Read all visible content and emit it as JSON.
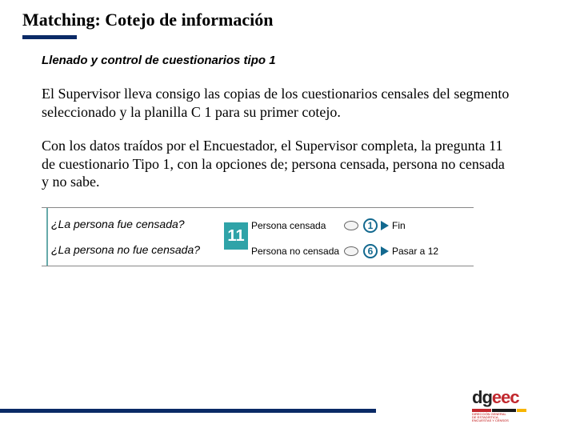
{
  "colors": {
    "accent_navy": "#0a2a66",
    "teal": "#2fa3a8",
    "circle_blue": "#13698f",
    "logo_red": "#c1272d",
    "text": "#000000",
    "bg": "#ffffff"
  },
  "title": "Matching: Cotejo de información",
  "subtitle": "Llenado y control de cuestionarios tipo 1",
  "paragraphs": [
    "El Supervisor lleva consigo las copias de los cuestionarios censales del segmento seleccionado y la planilla C 1 para su primer cotejo.",
    "Con los datos traídos por el Encuestador, el Supervisor completa, la pregunta 11 de cuestionario Tipo 1, con la opciones de; persona censada, persona no censada y no sabe."
  ],
  "figure": {
    "question_number": "11",
    "q1": "¿La persona fue censada?",
    "q2": "¿La persona no fue censada?",
    "options": [
      {
        "label": "Persona censada",
        "code": "1",
        "goto": "Fin"
      },
      {
        "label": "Persona no censada",
        "code": "6",
        "goto": "Pasar a 12"
      }
    ]
  },
  "logo": {
    "text_dark": "dg",
    "text_red": "eec",
    "bars": [
      {
        "color": "#c1272d",
        "width": 24
      },
      {
        "color": "#1a1a1a",
        "width": 30
      },
      {
        "color": "#f7b500",
        "width": 12
      }
    ],
    "subtext": "DIRECCIÓN GENERAL\nDE ESTADÍSTICA,\nENCUESTAS Y CENSOS"
  }
}
